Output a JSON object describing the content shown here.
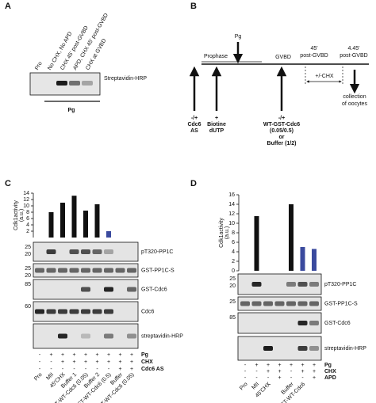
{
  "panel_a": {
    "label": "A",
    "lanes": [
      "Pro",
      "No CHX, No APD",
      "CHX 45' post-GVBD",
      "APD, CHX 45' post-GVBD",
      "CHX at GVBD"
    ],
    "blot_label": "Streptavidin-HRP",
    "group_label": "Pg"
  },
  "panel_b": {
    "label": "B",
    "prophase": "Prophase",
    "pg": "Pg",
    "gvbd": "GVBD",
    "t45": [
      "45'",
      "post-GVBD"
    ],
    "t445": [
      "4.45'",
      "post-GVBD"
    ],
    "chx": "+/-CHX",
    "steps": [
      [
        "-/+",
        "Cdc6",
        "AS"
      ],
      [
        "+",
        "Biotine",
        "dUTP"
      ],
      [
        "-/+",
        "WT-GST-Cdc6",
        "(0.05/0.5)",
        "or",
        "Buffer (1/2)"
      ]
    ],
    "end": [
      "collection",
      "of oocytes"
    ]
  },
  "chart_data": [
    {
      "type": "bar",
      "panel": "C",
      "y_label": [
        "Cdk1activity",
        "(a.u.)"
      ],
      "categories": [
        "Pro",
        "MII",
        "45'CHX",
        "Buffer 1",
        "GST-WT-Cdc6 (0.05)",
        "Buffer 2",
        "GST-WT-Cdc6 (0.5)",
        "Buffer",
        "GST-WT-Cdc6 (0.05)"
      ],
      "values": [
        0,
        8,
        11,
        13.2,
        8.5,
        10.5,
        2,
        0,
        0
      ],
      "colors": [
        "#111111",
        "#111111",
        "#111111",
        "#111111",
        "#111111",
        "#111111",
        "#3a4a9e",
        "#111111",
        "#111111"
      ],
      "ylim": [
        0,
        14
      ],
      "yticks": [
        2,
        4,
        6,
        8,
        10,
        12,
        14
      ],
      "blots": [
        {
          "label": "pT320-PP1C",
          "markers": [
            25,
            20
          ]
        },
        {
          "label": "GST-PP1C-S",
          "markers": [
            25,
            20
          ]
        },
        {
          "label": "GST-Cdc6",
          "markers": [
            85
          ]
        },
        {
          "label": "Cdc6",
          "markers": [
            60
          ]
        },
        {
          "label": "streptavidin-HRP",
          "markers": []
        }
      ],
      "sign_rows": [
        {
          "label": "Pg",
          "signs": [
            "-",
            "+",
            "+",
            "+",
            "+",
            "+",
            "+",
            "+",
            "+"
          ]
        },
        {
          "label": "CHX",
          "signs": [
            "-",
            "-",
            "+",
            "+",
            "+",
            "+",
            "+",
            "+",
            "+"
          ]
        },
        {
          "label": "Cdc6 AS",
          "signs": [
            "-",
            "-",
            "-",
            "-",
            "-",
            "-",
            "-",
            "+",
            "+"
          ]
        }
      ]
    },
    {
      "type": "bar",
      "panel": "D",
      "y_label": [
        "Cdk1activity",
        "(a.u.)"
      ],
      "categories": [
        "Pro",
        "MII",
        "45'CHX",
        null,
        "Buffer",
        "GST-WT-Cdc6",
        null
      ],
      "values": [
        0,
        11.5,
        0,
        0,
        14,
        5,
        4.6
      ],
      "colors": [
        "#111111",
        "#111111",
        "#111111",
        "#111111",
        "#111111",
        "#3a4a9e",
        "#3a4a9e"
      ],
      "ylim": [
        0,
        16
      ],
      "yticks": [
        0,
        2,
        4,
        6,
        8,
        10,
        12,
        14,
        16
      ],
      "blots": [
        {
          "label": "pT320-PP1C",
          "markers": [
            25,
            20
          ]
        },
        {
          "label": "GST-PP1C-S",
          "markers": [
            25
          ]
        },
        {
          "label": "GST-Cdc6",
          "markers": [
            85
          ]
        },
        {
          "label": "streptavidin-HRP",
          "markers": []
        }
      ],
      "sign_rows": [
        {
          "label": "Pg",
          "signs": [
            "-",
            "+",
            "+",
            "+",
            "+",
            "+",
            "+"
          ]
        },
        {
          "label": "CHX",
          "signs": [
            "-",
            "-",
            "+",
            "+",
            "-",
            "+",
            "+"
          ]
        },
        {
          "label": "APD",
          "signs": [
            "-",
            "-",
            "-",
            "+",
            "-",
            "-",
            "+"
          ]
        }
      ]
    }
  ]
}
